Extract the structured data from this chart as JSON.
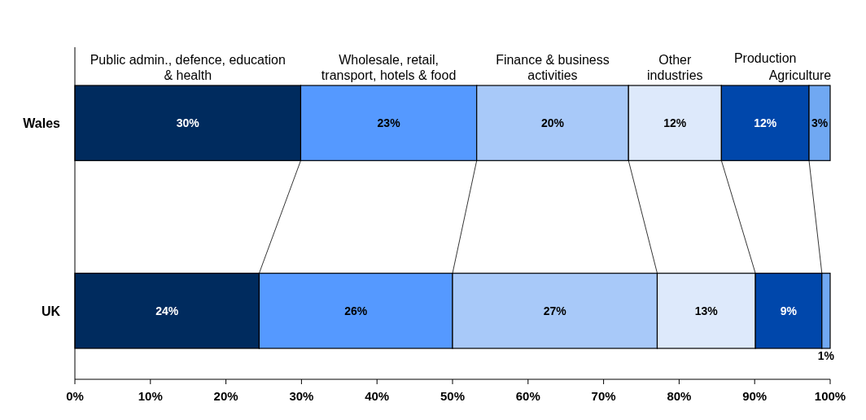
{
  "chart_data": {
    "type": "bar",
    "orientation": "horizontal",
    "stacked": true,
    "categories": [
      "Wales",
      "UK"
    ],
    "series": [
      {
        "name": "Public admin., defence, education & health",
        "color": "#002b5e",
        "values": [
          29.9,
          24.4
        ],
        "value_labels": [
          "30%",
          "24%"
        ]
      },
      {
        "name": "Wholesale, retail, transport,  hotels & food",
        "color": "#5599ff",
        "values": [
          23.3,
          25.6
        ],
        "value_labels": [
          "23%",
          "26%"
        ]
      },
      {
        "name": "Finance & business activities",
        "color": "#a8c9f9",
        "values": [
          20.1,
          27.1
        ],
        "value_labels": [
          "20%",
          "27%"
        ]
      },
      {
        "name": "Other industries",
        "color": "#dde9fb",
        "values": [
          12.3,
          13.0
        ],
        "value_labels": [
          "12%",
          "13%"
        ]
      },
      {
        "name": "Production",
        "color": "#0047ab",
        "values": [
          11.6,
          8.8
        ],
        "value_labels": [
          "12%",
          "9%"
        ]
      },
      {
        "name": "Agriculture",
        "color": "#70a8f2",
        "values": [
          2.8,
          1.1
        ],
        "value_labels": [
          "3%",
          "1%"
        ]
      }
    ],
    "xlim": [
      0,
      100
    ],
    "xticks": [
      {
        "value": 0,
        "label": "0%"
      },
      {
        "value": 10,
        "label": "10%"
      },
      {
        "value": 20,
        "label": "20%"
      },
      {
        "value": 30,
        "label": "30%"
      },
      {
        "value": 40,
        "label": "40%"
      },
      {
        "value": 50,
        "label": "50%"
      },
      {
        "value": 60,
        "label": "60%"
      },
      {
        "value": 70,
        "label": "70%"
      },
      {
        "value": 80,
        "label": "80%"
      },
      {
        "value": 90,
        "label": "90%"
      },
      {
        "value": 100,
        "label": "100%"
      }
    ],
    "grid": false
  }
}
